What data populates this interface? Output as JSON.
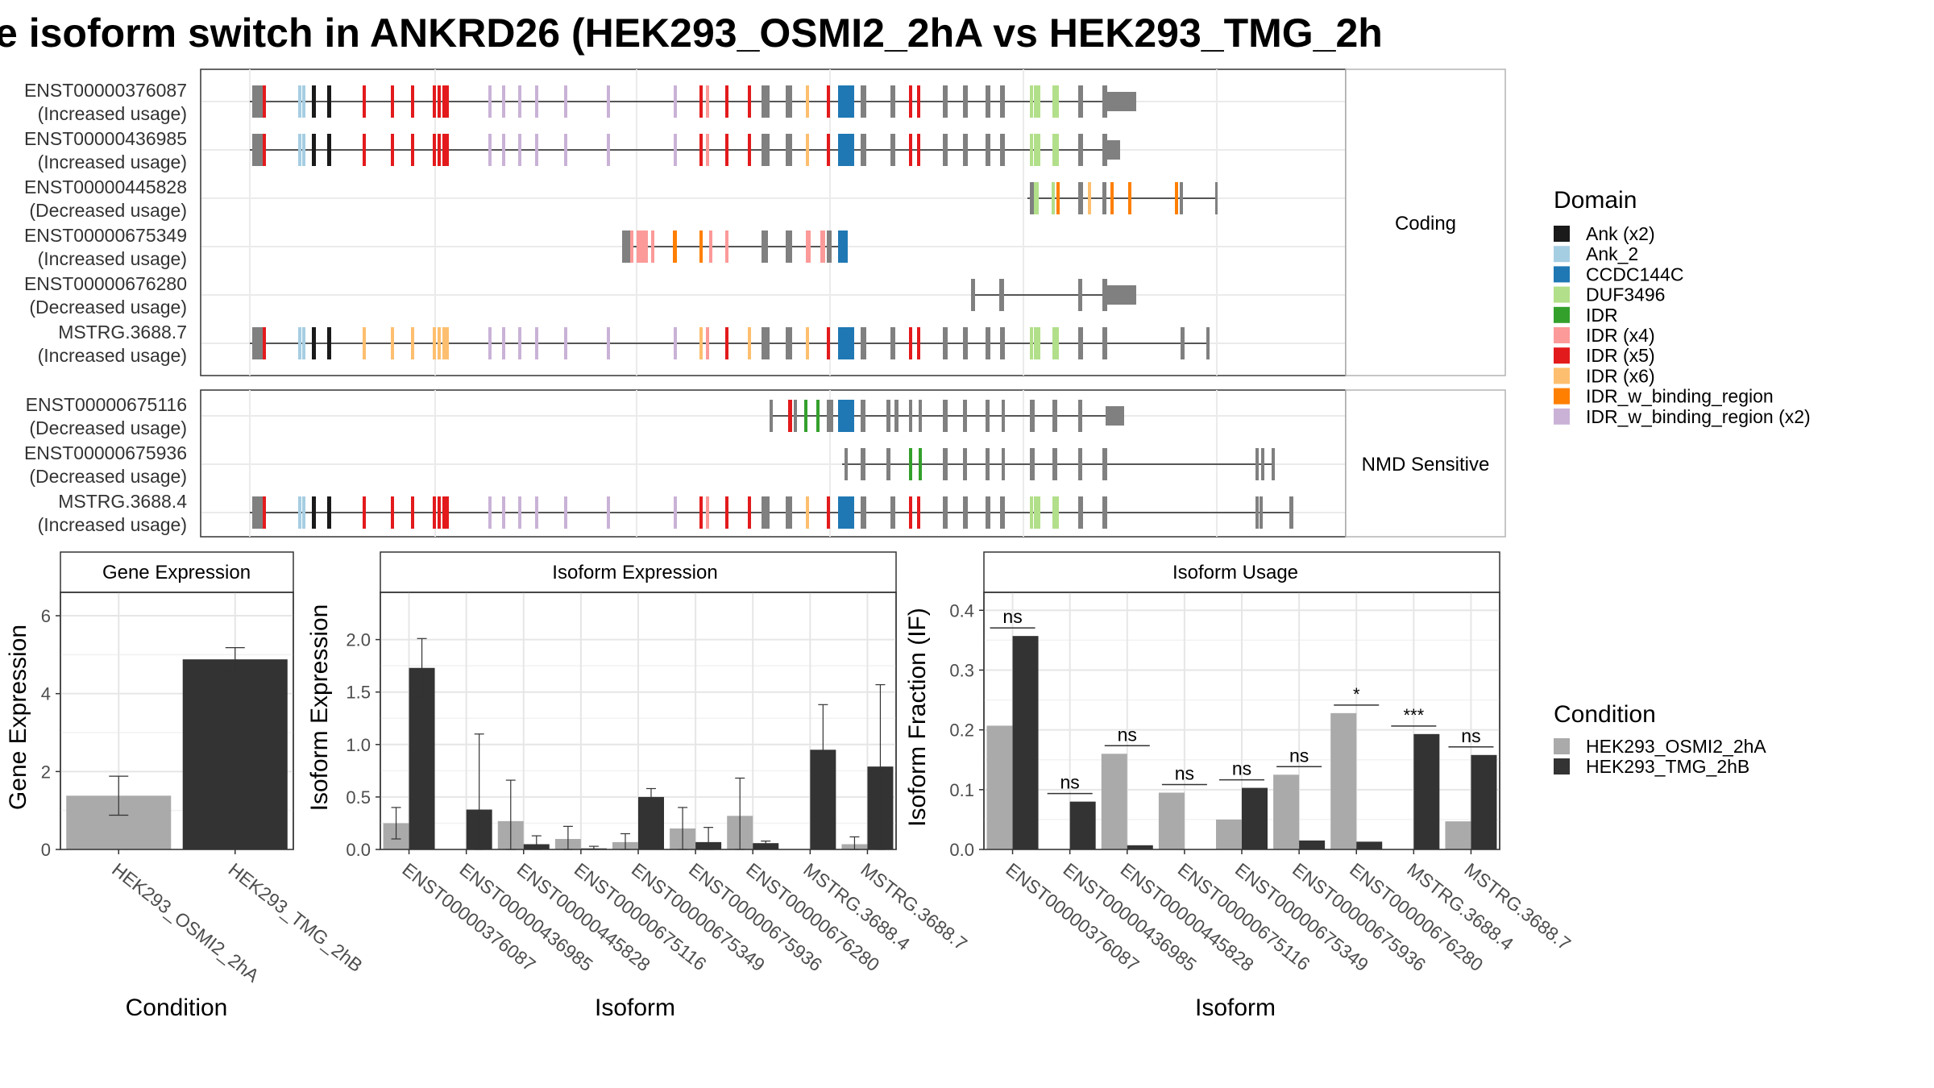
{
  "title": "e isoform switch in ANKRD26 (HEK293_OSMI2_2hA vs HEK293_TMG_2h",
  "structure": {
    "groups": [
      {
        "label": "Coding",
        "transcripts": [
          {
            "id": "ENST00000376087",
            "usage": "(Increased usage)"
          },
          {
            "id": "ENST00000436985",
            "usage": "(Increased usage)"
          },
          {
            "id": "ENST00000445828",
            "usage": "(Decreased usage)"
          },
          {
            "id": "ENST00000675349",
            "usage": "(Increased usage)"
          },
          {
            "id": "ENST00000676280",
            "usage": "(Decreased usage)"
          },
          {
            "id": "MSTRG.3688.7",
            "usage": "(Increased usage)"
          }
        ]
      },
      {
        "label": "NMD Sensitive",
        "transcripts": [
          {
            "id": "ENST00000675116",
            "usage": "(Decreased usage)"
          },
          {
            "id": "ENST00000675936",
            "usage": "(Decreased usage)"
          },
          {
            "id": "MSTRG.3688.4",
            "usage": "(Increased usage)"
          }
        ]
      }
    ]
  },
  "domain_legend": {
    "title": "Domain",
    "items": [
      {
        "label": "Ank (x2)",
        "color": "#1a1a1a"
      },
      {
        "label": "Ank_2",
        "color": "#a6cee3"
      },
      {
        "label": "CCDC144C",
        "color": "#1f78b4"
      },
      {
        "label": "DUF3496",
        "color": "#b2df8a"
      },
      {
        "label": "IDR",
        "color": "#33a02c"
      },
      {
        "label": "IDR (x4)",
        "color": "#fb9a99"
      },
      {
        "label": "IDR (x5)",
        "color": "#e31a1c"
      },
      {
        "label": "IDR (x6)",
        "color": "#fdbf6f"
      },
      {
        "label": "IDR_w_binding_region",
        "color": "#ff7f00"
      },
      {
        "label": "IDR_w_binding_region (x2)",
        "color": "#cab2d6"
      }
    ]
  },
  "condition_legend": {
    "title": "Condition",
    "items": [
      {
        "label": "HEK293_OSMI2_2hA",
        "color": "#aaaaaa"
      },
      {
        "label": "HEK293_TMG_2hB",
        "color": "#333333"
      }
    ]
  },
  "chart_data": [
    {
      "type": "bar",
      "title": "Gene Expression",
      "xlabel": "Condition",
      "ylabel": "Gene Expression",
      "categories": [
        "HEK293_OSMI2_2hA",
        "HEK293_TMG_2hB"
      ],
      "values": [
        1.38,
        4.88
      ],
      "error_low": [
        0.88,
        4.58
      ],
      "error_high": [
        1.88,
        5.18
      ],
      "colors": [
        "#aaaaaa",
        "#333333"
      ],
      "ylim": [
        0,
        6.6
      ],
      "yticks": [
        0,
        2,
        4,
        6
      ]
    },
    {
      "type": "bar",
      "title": "Isoform Expression",
      "xlabel": "Isoform",
      "ylabel": "Isoform Expression",
      "categories": [
        "ENST00000376087",
        "ENST00000436985",
        "ENST00000445828",
        "ENST00000675116",
        "ENST00000675349",
        "ENST00000675936",
        "ENST00000676280",
        "MSTRG.3688.4",
        "MSTRG.3688.7"
      ],
      "series": [
        {
          "name": "HEK293_OSMI2_2hA",
          "values": [
            0.25,
            0.0,
            0.27,
            0.1,
            0.07,
            0.2,
            0.32,
            0.0,
            0.05
          ],
          "error_low": [
            0.1,
            0.0,
            0.0,
            0.0,
            0.0,
            0.0,
            0.0,
            0.0,
            0.0
          ],
          "error_high": [
            0.4,
            0.0,
            0.66,
            0.22,
            0.15,
            0.4,
            0.68,
            0.0,
            0.12
          ]
        },
        {
          "name": "HEK293_TMG_2hB",
          "values": [
            1.73,
            0.38,
            0.05,
            0.01,
            0.5,
            0.07,
            0.06,
            0.95,
            0.79
          ],
          "error_low": [
            1.45,
            0.0,
            0.0,
            0.0,
            0.42,
            0.0,
            0.04,
            0.52,
            0.0
          ],
          "error_high": [
            2.01,
            1.1,
            0.13,
            0.03,
            0.58,
            0.21,
            0.08,
            1.38,
            1.57
          ]
        }
      ],
      "colors": [
        "#aaaaaa",
        "#333333"
      ],
      "ylim": [
        0,
        2.45
      ],
      "yticks": [
        0.0,
        0.5,
        1.0,
        1.5,
        2.0
      ]
    },
    {
      "type": "bar",
      "title": "Isoform Usage",
      "xlabel": "Isoform",
      "ylabel": "Isoform Fraction (IF)",
      "categories": [
        "ENST00000376087",
        "ENST00000436985",
        "ENST00000445828",
        "ENST00000675116",
        "ENST00000675349",
        "ENST00000675936",
        "ENST00000676280",
        "MSTRG.3688.4",
        "MSTRG.3688.7"
      ],
      "series": [
        {
          "name": "HEK293_OSMI2_2hA",
          "values": [
            0.207,
            0.0,
            0.16,
            0.095,
            0.05,
            0.125,
            0.228,
            0.0,
            0.047
          ]
        },
        {
          "name": "HEK293_TMG_2hB",
          "values": [
            0.357,
            0.08,
            0.007,
            0.0,
            0.103,
            0.015,
            0.013,
            0.193,
            0.158
          ]
        }
      ],
      "significance": [
        "ns",
        "ns",
        "ns",
        "ns",
        "ns",
        "ns",
        "*",
        "***",
        "ns"
      ],
      "colors": [
        "#aaaaaa",
        "#333333"
      ],
      "ylim": [
        0,
        0.43
      ],
      "yticks": [
        0.0,
        0.1,
        0.2,
        0.3,
        0.4
      ]
    }
  ]
}
